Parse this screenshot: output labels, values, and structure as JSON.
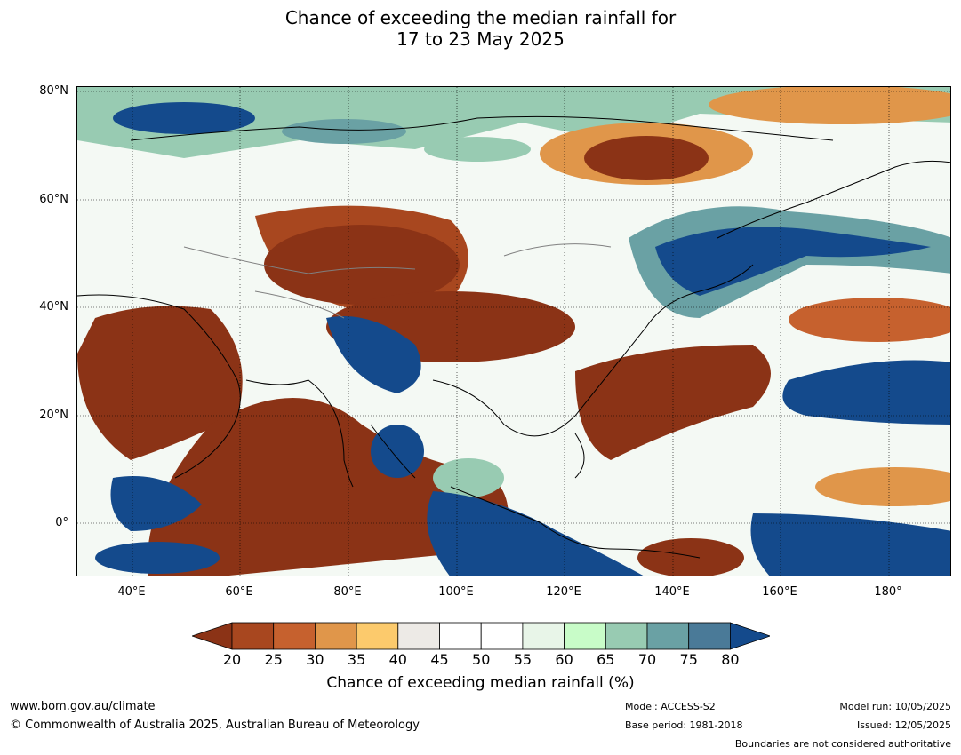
{
  "title_line1": "Chance of exceeding the median rainfall for",
  "title_line2": "17 to 23 May 2025",
  "lat_labels": [
    "80°N",
    "60°N",
    "40°N",
    "20°N",
    "0°"
  ],
  "lon_labels": [
    "40°E",
    "60°E",
    "80°E",
    "100°E",
    "120°E",
    "140°E",
    "160°E",
    "180°"
  ],
  "colorbar": {
    "ticks": [
      "20",
      "25",
      "30",
      "35",
      "40",
      "45",
      "50",
      "55",
      "60",
      "65",
      "70",
      "75",
      "80"
    ],
    "colors": [
      "#8b3316",
      "#a8471f",
      "#c6612e",
      "#e0964a",
      "#fcca6c",
      "#edeae6",
      "#ffffff",
      "#ffffff",
      "#e8f5e8",
      "#c8fcc8",
      "#98cbb2",
      "#6aa1a4",
      "#4a7a98",
      "#144a8c"
    ],
    "label": "Chance of exceeding median rainfall (%)"
  },
  "footer": {
    "url": "www.bom.gov.au/climate",
    "copyright": "© Commonwealth of Australia 2025, Australian Bureau of Meteorology",
    "model": "Model: ACCESS-S2",
    "base_period": "Base period: 1981-2018",
    "model_run": "Model run: 10/05/2025",
    "issued": "Issued: 12/05/2025",
    "disclaimer": "Boundaries are not considered authoritative"
  }
}
